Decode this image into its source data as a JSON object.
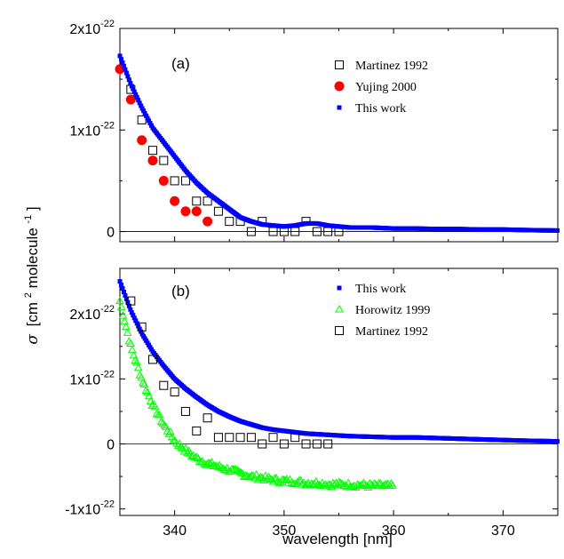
{
  "chart_data": [
    {
      "panel": "(a)",
      "type": "scatter",
      "xlim": [
        335,
        375
      ],
      "ylim": [
        -1e-23,
        2e-22
      ],
      "y_ticks": [
        {
          "value": 0,
          "label": "0",
          "exp": ""
        },
        {
          "value": 1e-22,
          "label": "1x10",
          "exp": "-22"
        },
        {
          "value": 2e-22,
          "label": "2x10",
          "exp": "-22"
        }
      ],
      "zero_line": true,
      "legend_position": "top-right",
      "series": [
        {
          "name": "Martinez 1992",
          "marker": "open-square",
          "color": "#000000",
          "x": [
            336,
            337,
            338,
            339,
            340,
            341,
            342,
            343,
            344,
            345,
            346,
            347,
            348,
            349,
            350,
            351,
            352,
            353,
            354,
            355
          ],
          "y": [
            1.4e-22,
            1.1e-22,
            8e-23,
            7e-23,
            5e-23,
            5e-23,
            3e-23,
            3e-23,
            2e-23,
            1e-23,
            1e-23,
            0.0,
            1e-23,
            0.0,
            0.0,
            0.0,
            1e-23,
            0.0,
            0.0,
            0.0
          ]
        },
        {
          "name": "Yujing 2000",
          "marker": "filled-circle",
          "color": "#ff0000",
          "x": [
            335,
            336,
            337,
            338,
            339,
            340,
            341,
            342,
            343
          ],
          "y": [
            1.6e-22,
            1.3e-22,
            9e-23,
            7e-23,
            5e-23,
            3e-23,
            2e-23,
            2e-23,
            1e-23
          ]
        },
        {
          "name": "This work",
          "marker": "small-filled-square",
          "color": "#0000ff",
          "x": [
            335,
            336,
            337,
            338,
            339,
            340,
            341,
            342,
            343,
            344,
            345,
            346,
            347,
            348,
            349,
            350,
            351,
            352,
            353,
            354,
            355,
            356,
            357,
            358,
            359,
            360,
            362,
            364,
            366,
            368,
            370,
            372,
            375
          ],
          "y": [
            1.73e-22,
            1.45e-22,
            1.22e-22,
            1.02e-22,
            8.8e-23,
            7.4e-23,
            6e-23,
            4.8e-23,
            3.8e-23,
            3e-23,
            2.2e-23,
            1.4e-23,
            1e-23,
            7e-24,
            6e-24,
            5e-24,
            6e-24,
            8e-24,
            8e-24,
            6e-24,
            5e-24,
            4e-24,
            4e-24,
            4e-24,
            3.5e-24,
            3e-24,
            3e-24,
            2.5e-24,
            2.5e-24,
            2e-24,
            2e-24,
            1.5e-24,
            1e-24
          ]
        }
      ]
    },
    {
      "panel": "(b)",
      "type": "scatter",
      "xlim": [
        335,
        375
      ],
      "ylim": [
        -1.1e-22,
        2.7e-22
      ],
      "y_ticks": [
        {
          "value": -1e-22,
          "label": "-1x10",
          "exp": "-22"
        },
        {
          "value": 0,
          "label": "0",
          "exp": ""
        },
        {
          "value": 1e-22,
          "label": "1x10",
          "exp": "-22"
        },
        {
          "value": 2e-22,
          "label": "2x10",
          "exp": "-22"
        }
      ],
      "x_ticks": [
        340,
        350,
        360,
        370
      ],
      "zero_line": true,
      "legend_position": "top-right",
      "series": [
        {
          "name": "This work",
          "marker": "small-filled-square",
          "color": "#0000ff",
          "x": [
            335,
            336,
            337,
            338,
            339,
            340,
            341,
            342,
            343,
            344,
            345,
            346,
            347,
            348,
            349,
            350,
            351,
            352,
            353,
            354,
            355,
            356,
            358,
            360,
            362,
            364,
            366,
            368,
            370,
            372,
            375
          ],
          "y": [
            2.5e-22,
            2.05e-22,
            1.7e-22,
            1.42e-22,
            1.2e-22,
            1e-22,
            8.5e-23,
            7.2e-23,
            6e-23,
            5e-23,
            4.2e-23,
            3.5e-23,
            3e-23,
            2.5e-23,
            2.2e-23,
            2e-23,
            1.8e-23,
            1.6e-23,
            1.5e-23,
            1.4e-23,
            1.3e-23,
            1.2e-23,
            1.1e-23,
            1e-23,
            1e-23,
            9e-24,
            8e-24,
            7e-24,
            6e-24,
            5e-24,
            4e-24
          ]
        },
        {
          "name": "Horowitz 1999",
          "marker": "open-triangle",
          "color": "#00ff00",
          "x": [
            335,
            336,
            337,
            338,
            339,
            340,
            341,
            342,
            343,
            344,
            345,
            346,
            347,
            348,
            349,
            350,
            351,
            352,
            353,
            354,
            355,
            356,
            357,
            358,
            359,
            360
          ],
          "y": [
            2.2e-22,
            1.5e-22,
            1e-22,
            6e-23,
            3e-23,
            5e-24,
            -1e-23,
            -2.2e-23,
            -3e-23,
            -3.5e-23,
            -4e-23,
            -4.5e-23,
            -5e-23,
            -5.2e-23,
            -5.5e-23,
            -5.7e-23,
            -5.8e-23,
            -6e-23,
            -6e-23,
            -6.2e-23,
            -6.2e-23,
            -6.3e-23,
            -6.3e-23,
            -6.4e-23,
            -6.4e-23,
            -6.5e-23
          ]
        },
        {
          "name": "Martinez 1992",
          "marker": "open-square",
          "color": "#000000",
          "x": [
            336,
            337,
            338,
            339,
            340,
            341,
            342,
            343,
            344,
            345,
            346,
            347,
            348,
            349,
            350,
            351,
            352,
            353,
            354
          ],
          "y": [
            2.2e-22,
            1.8e-22,
            1.3e-22,
            9e-23,
            8e-23,
            5e-23,
            2e-23,
            4e-23,
            1e-23,
            1e-23,
            1e-23,
            1e-23,
            0.0,
            1e-23,
            0.0,
            1e-23,
            0.0,
            0.0,
            0.0
          ]
        }
      ]
    }
  ],
  "axes": {
    "y_title_symbol": "σ",
    "y_title_text": "[cm",
    "y_title_sup1": "2",
    "y_title_mid": "molecule",
    "y_title_sup2": "-1",
    "y_title_end": "]",
    "x_title": "wavelength [nm]"
  }
}
